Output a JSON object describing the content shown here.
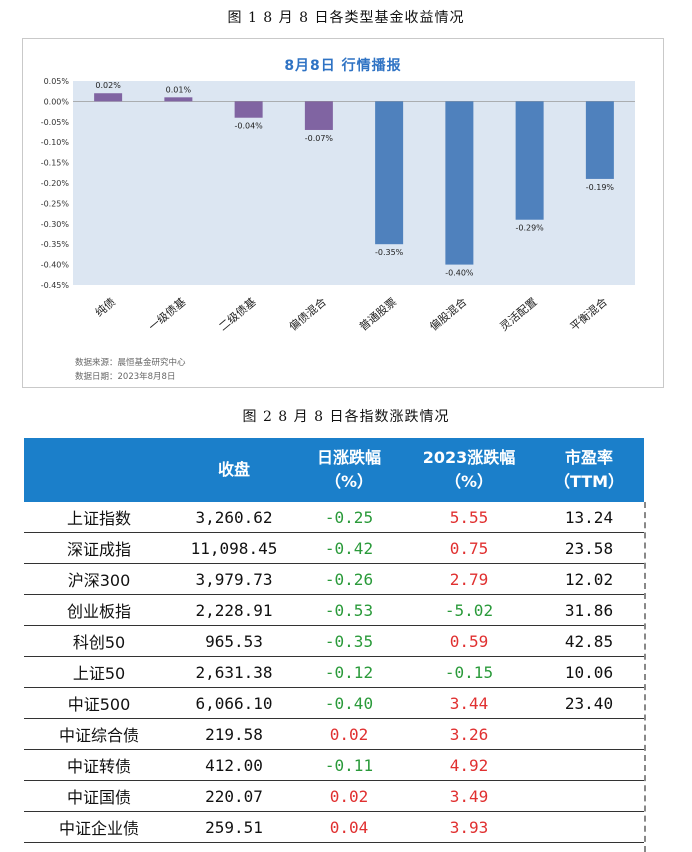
{
  "figure1_caption": "图 1   8 月 8 日各类型基金收益情况",
  "figure2_caption": "图 2   8 月 8 日各指数涨跌情况",
  "chart_data": {
    "type": "bar",
    "title": "8月8日  行情播报",
    "categories": [
      "纯债",
      "一级债基",
      "二级债基",
      "偏债混合",
      "普通股票",
      "偏股混合",
      "灵活配置",
      "平衡混合"
    ],
    "values": [
      0.02,
      0.01,
      -0.04,
      -0.07,
      -0.35,
      -0.4,
      -0.29,
      -0.19
    ],
    "value_labels": [
      "0.02%",
      "0.01%",
      "-0.04%",
      "-0.07%",
      "-0.35%",
      "-0.40%",
      "-0.29%",
      "-0.19%"
    ],
    "ylim": [
      -0.45,
      0.05
    ],
    "yticks": [
      0.05,
      0.0,
      -0.05,
      -0.1,
      -0.15,
      -0.2,
      -0.25,
      -0.3,
      -0.35,
      -0.4,
      -0.45
    ],
    "ytick_labels": [
      "0.05%",
      "0.00%",
      "-0.05%",
      "-0.10%",
      "-0.15%",
      "-0.20%",
      "-0.25%",
      "-0.30%",
      "-0.35%",
      "-0.40%",
      "-0.45%"
    ],
    "colors": [
      "#8064a2",
      "#8064a2",
      "#8064a2",
      "#8064a2",
      "#4f81bd",
      "#4f81bd",
      "#4f81bd",
      "#4f81bd"
    ],
    "plot_background": "#dce6f2",
    "grid": false,
    "xlabel": "",
    "ylabel": ""
  },
  "chart_source": "数据来源：晨恒基金研究中心",
  "chart_date": "数据日期：2023年8月8日",
  "table": {
    "headers": [
      {
        "line1": "",
        "line2": ""
      },
      {
        "line1": "收盘",
        "line2": ""
      },
      {
        "line1": "日涨跌幅",
        "line2": "（%）"
      },
      {
        "line1": "2023涨跌幅",
        "line2": "（%）"
      },
      {
        "line1": "市盈率",
        "line2": "（TTM）"
      }
    ],
    "rows": [
      {
        "name": "上证指数",
        "close": "3,260.62",
        "day": "-0.25",
        "ytd": "5.55",
        "pe": "13.24"
      },
      {
        "name": "深证成指",
        "close": "11,098.45",
        "day": "-0.42",
        "ytd": "0.75",
        "pe": "23.58"
      },
      {
        "name": "沪深300",
        "close": "3,979.73",
        "day": "-0.26",
        "ytd": "2.79",
        "pe": "12.02"
      },
      {
        "name": "创业板指",
        "close": "2,228.91",
        "day": "-0.53",
        "ytd": "-5.02",
        "pe": "31.86"
      },
      {
        "name": "科创50",
        "close": "965.53",
        "day": "-0.35",
        "ytd": "0.59",
        "pe": "42.85"
      },
      {
        "name": "上证50",
        "close": "2,631.38",
        "day": "-0.12",
        "ytd": "-0.15",
        "pe": "10.06"
      },
      {
        "name": "中证500",
        "close": "6,066.10",
        "day": "-0.40",
        "ytd": "3.44",
        "pe": "23.40"
      },
      {
        "name": "中证综合债",
        "close": "219.58",
        "day": "0.02",
        "ytd": "3.26",
        "pe": ""
      },
      {
        "name": "中证转债",
        "close": "412.00",
        "day": "-0.11",
        "ytd": "4.92",
        "pe": ""
      },
      {
        "name": "中证国债",
        "close": "220.07",
        "day": "0.02",
        "ytd": "3.49",
        "pe": ""
      },
      {
        "name": "中证企业债",
        "close": "259.51",
        "day": "0.04",
        "ytd": "3.93",
        "pe": ""
      }
    ]
  }
}
